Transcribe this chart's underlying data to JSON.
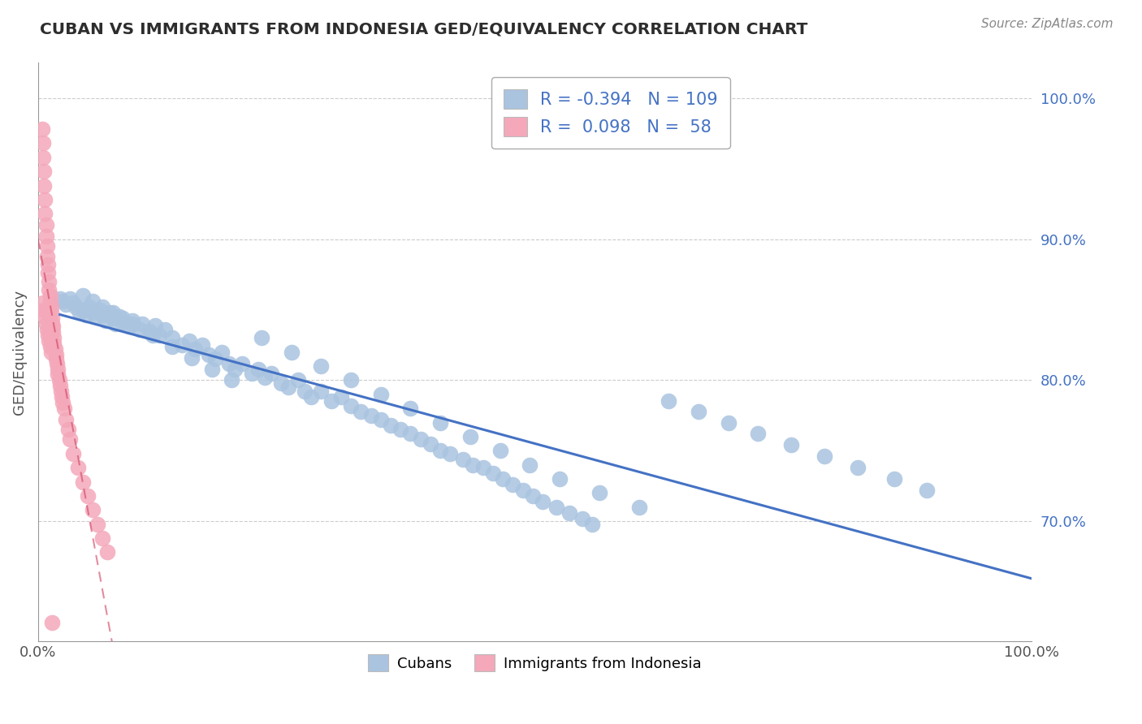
{
  "title": "CUBAN VS IMMIGRANTS FROM INDONESIA GED/EQUIVALENCY CORRELATION CHART",
  "source": "Source: ZipAtlas.com",
  "ylabel": "GED/Equivalency",
  "ytick_labels": [
    "100.0%",
    "90.0%",
    "80.0%",
    "70.0%"
  ],
  "ytick_values": [
    1.0,
    0.9,
    0.8,
    0.7
  ],
  "legend_label1": "Cubans",
  "legend_label2": "Immigrants from Indonesia",
  "legend_R1": "-0.394",
  "legend_N1": "109",
  "legend_R2": "0.098",
  "legend_N2": "58",
  "blue_color": "#aac4e0",
  "pink_color": "#f4a8ba",
  "blue_line_color": "#4472c4",
  "pink_line_color": "#d04060",
  "grid_color": "#cccccc",
  "background_color": "#ffffff",
  "title_color": "#2d2d2d",
  "axis_color": "#555555",
  "blue_x": [
    0.022,
    0.025,
    0.028,
    0.032,
    0.035,
    0.038,
    0.042,
    0.045,
    0.048,
    0.052,
    0.055,
    0.058,
    0.062,
    0.065,
    0.068,
    0.072,
    0.075,
    0.078,
    0.082,
    0.085,
    0.092,
    0.095,
    0.102,
    0.105,
    0.112,
    0.118,
    0.122,
    0.128,
    0.135,
    0.145,
    0.152,
    0.158,
    0.165,
    0.172,
    0.178,
    0.185,
    0.192,
    0.198,
    0.205,
    0.215,
    0.222,
    0.228,
    0.235,
    0.245,
    0.252,
    0.262,
    0.268,
    0.275,
    0.285,
    0.295,
    0.305,
    0.315,
    0.325,
    0.335,
    0.345,
    0.355,
    0.365,
    0.375,
    0.385,
    0.395,
    0.405,
    0.415,
    0.428,
    0.438,
    0.448,
    0.458,
    0.468,
    0.478,
    0.488,
    0.498,
    0.508,
    0.522,
    0.535,
    0.548,
    0.558,
    0.045,
    0.055,
    0.065,
    0.075,
    0.085,
    0.095,
    0.115,
    0.135,
    0.155,
    0.175,
    0.195,
    0.225,
    0.255,
    0.285,
    0.315,
    0.345,
    0.375,
    0.405,
    0.435,
    0.465,
    0.495,
    0.525,
    0.565,
    0.605,
    0.635,
    0.665,
    0.695,
    0.725,
    0.758,
    0.792,
    0.825,
    0.862,
    0.895
  ],
  "blue_y": [
    0.858,
    0.856,
    0.854,
    0.858,
    0.855,
    0.852,
    0.848,
    0.85,
    0.846,
    0.852,
    0.848,
    0.845,
    0.85,
    0.846,
    0.842,
    0.848,
    0.844,
    0.84,
    0.845,
    0.841,
    0.838,
    0.842,
    0.836,
    0.84,
    0.835,
    0.839,
    0.832,
    0.836,
    0.83,
    0.825,
    0.828,
    0.822,
    0.825,
    0.818,
    0.815,
    0.82,
    0.812,
    0.808,
    0.812,
    0.805,
    0.808,
    0.802,
    0.805,
    0.798,
    0.795,
    0.8,
    0.792,
    0.788,
    0.792,
    0.785,
    0.788,
    0.782,
    0.778,
    0.775,
    0.772,
    0.768,
    0.765,
    0.762,
    0.758,
    0.755,
    0.75,
    0.748,
    0.744,
    0.74,
    0.738,
    0.734,
    0.73,
    0.726,
    0.722,
    0.718,
    0.714,
    0.71,
    0.706,
    0.702,
    0.698,
    0.86,
    0.856,
    0.852,
    0.848,
    0.844,
    0.84,
    0.832,
    0.824,
    0.816,
    0.808,
    0.8,
    0.83,
    0.82,
    0.81,
    0.8,
    0.79,
    0.78,
    0.77,
    0.76,
    0.75,
    0.74,
    0.73,
    0.72,
    0.71,
    0.785,
    0.778,
    0.77,
    0.762,
    0.754,
    0.746,
    0.738,
    0.73,
    0.722
  ],
  "pink_x": [
    0.004,
    0.005,
    0.005,
    0.006,
    0.006,
    0.007,
    0.007,
    0.008,
    0.008,
    0.009,
    0.009,
    0.01,
    0.01,
    0.011,
    0.011,
    0.012,
    0.012,
    0.013,
    0.013,
    0.014,
    0.014,
    0.015,
    0.015,
    0.016,
    0.016,
    0.017,
    0.018,
    0.018,
    0.019,
    0.02,
    0.02,
    0.021,
    0.022,
    0.023,
    0.024,
    0.025,
    0.026,
    0.028,
    0.03,
    0.032,
    0.035,
    0.04,
    0.045,
    0.05,
    0.055,
    0.06,
    0.065,
    0.07,
    0.005,
    0.006,
    0.007,
    0.008,
    0.009,
    0.01,
    0.011,
    0.012,
    0.013,
    0.014
  ],
  "pink_y": [
    0.978,
    0.968,
    0.958,
    0.948,
    0.938,
    0.928,
    0.918,
    0.91,
    0.902,
    0.895,
    0.888,
    0.882,
    0.876,
    0.87,
    0.864,
    0.86,
    0.856,
    0.852,
    0.848,
    0.844,
    0.84,
    0.838,
    0.834,
    0.83,
    0.826,
    0.822,
    0.818,
    0.815,
    0.812,
    0.808,
    0.804,
    0.8,
    0.796,
    0.792,
    0.788,
    0.784,
    0.78,
    0.772,
    0.765,
    0.758,
    0.748,
    0.738,
    0.728,
    0.718,
    0.708,
    0.698,
    0.688,
    0.678,
    0.855,
    0.85,
    0.845,
    0.84,
    0.836,
    0.832,
    0.828,
    0.824,
    0.82,
    0.628
  ]
}
